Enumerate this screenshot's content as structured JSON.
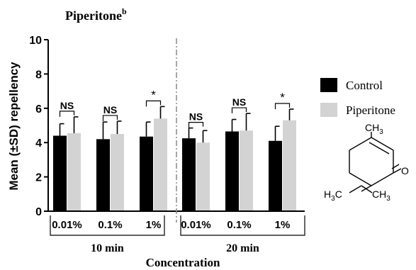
{
  "chart_data": {
    "type": "bar",
    "title": "Piperitone",
    "title_superscript": "b",
    "ylabel": "Mean (±SD) repellency",
    "xlabel": "Concentration",
    "ylim": [
      0,
      10
    ],
    "yticks": [
      0,
      2,
      4,
      6,
      8,
      10
    ],
    "groups": [
      {
        "label": "10 min",
        "categories": [
          "0.01%",
          "0.1%",
          "1%"
        ]
      },
      {
        "label": "20 min",
        "categories": [
          "0.01%",
          "0.1%",
          "1%"
        ]
      }
    ],
    "series": [
      {
        "name": "Control",
        "color": "#000000",
        "values": [
          4.4,
          4.2,
          4.35,
          4.25,
          4.65,
          4.1
        ],
        "sd": [
          0.7,
          1.0,
          0.85,
          0.6,
          0.7,
          0.85
        ]
      },
      {
        "name": "Piperitone",
        "color": "#d3d3d3",
        "values": [
          4.55,
          4.5,
          5.4,
          4.0,
          4.7,
          5.3
        ],
        "sd": [
          0.95,
          0.75,
          0.7,
          0.7,
          1.0,
          0.65
        ]
      }
    ],
    "significance": [
      "NS",
      "NS",
      "*",
      "NS",
      "NS",
      "*"
    ],
    "divider": "dash-dot line between 10 min and 20 min groups",
    "legend_position": "right"
  },
  "structure": {
    "name": "Piperitone molecule",
    "labels": {
      "methyl": "CH",
      "methyl_sub": "3",
      "oxygen": "O",
      "isopropyl_left": "H",
      "isopropyl_left_sub": "3",
      "isopropyl_left_c": "C",
      "isopropyl_right": "CH",
      "isopropyl_right_sub": "3"
    }
  }
}
